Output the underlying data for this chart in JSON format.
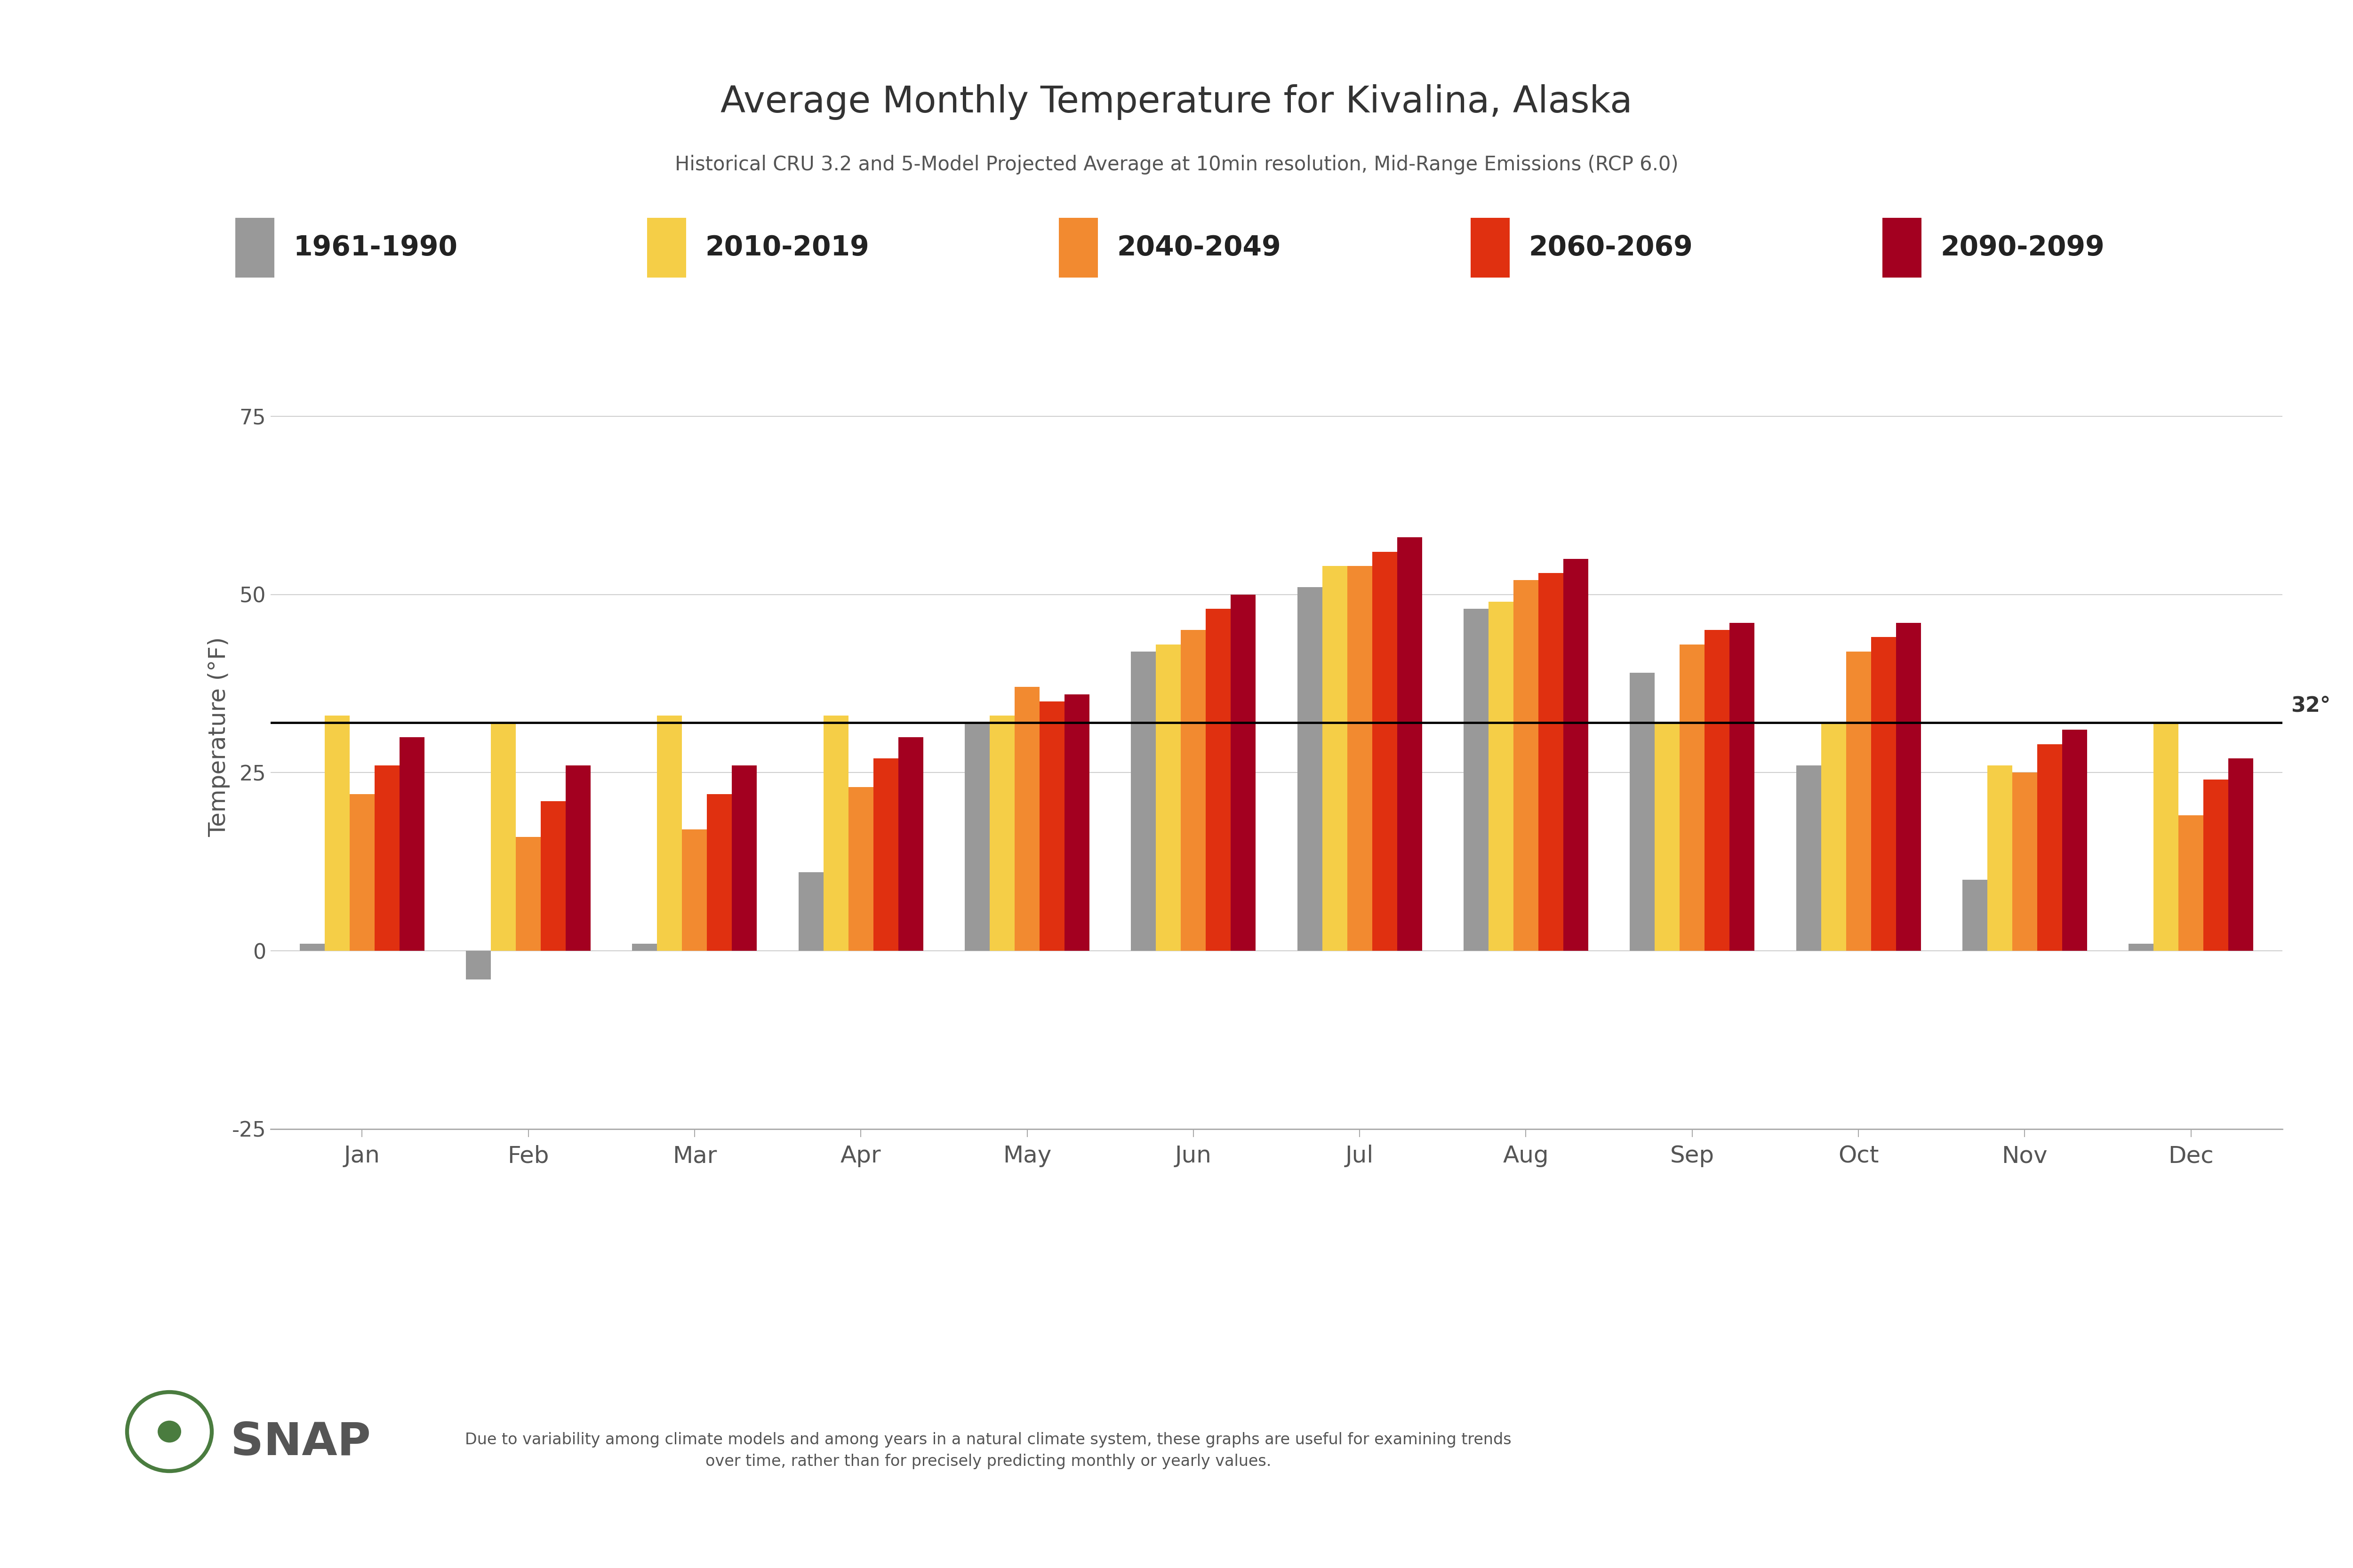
{
  "title": "Average Monthly Temperature for Kivalina, Alaska",
  "subtitle": "Historical CRU 3.2 and 5-Model Projected Average at 10min resolution, Mid-Range Emissions (RCP 6.0)",
  "ylabel": "Temperature (°F)",
  "footer_text": "Due to variability among climate models and among years in a natural climate system, these graphs are useful for examining trends\nover time, rather than for precisely predicting monthly or yearly values.",
  "months": [
    "Jan",
    "Feb",
    "Mar",
    "Apr",
    "May",
    "Jun",
    "Jul",
    "Aug",
    "Sep",
    "Oct",
    "Nov",
    "Dec"
  ],
  "series_labels": [
    "1961-1990",
    "2010-2019",
    "2040-2049",
    "2060-2069",
    "2090-2099"
  ],
  "series_colors": [
    "#999999",
    "#F5CE47",
    "#F28A30",
    "#E03010",
    "#A30020"
  ],
  "freezing_line": 32,
  "ylim": [
    -25,
    85
  ],
  "yticks": [
    -25,
    0,
    25,
    50,
    75
  ],
  "data": {
    "1961-1990": [
      1,
      -4,
      1,
      11,
      32,
      42,
      51,
      48,
      39,
      26,
      10,
      1
    ],
    "2010-2019": [
      33,
      32,
      33,
      33,
      33,
      43,
      54,
      49,
      32,
      32,
      26,
      32
    ],
    "2040-2049": [
      22,
      16,
      17,
      23,
      37,
      45,
      54,
      52,
      43,
      42,
      25,
      19
    ],
    "2060-2069": [
      26,
      21,
      22,
      27,
      35,
      48,
      56,
      53,
      45,
      44,
      29,
      24
    ],
    "2090-2099": [
      30,
      26,
      26,
      30,
      36,
      50,
      58,
      55,
      46,
      46,
      31,
      27
    ]
  },
  "background_color": "#ffffff",
  "grid_color": "#d0d0d0",
  "axis_color": "#aaaaaa",
  "text_color": "#555555",
  "title_color": "#333333",
  "snap_color": "#666666"
}
